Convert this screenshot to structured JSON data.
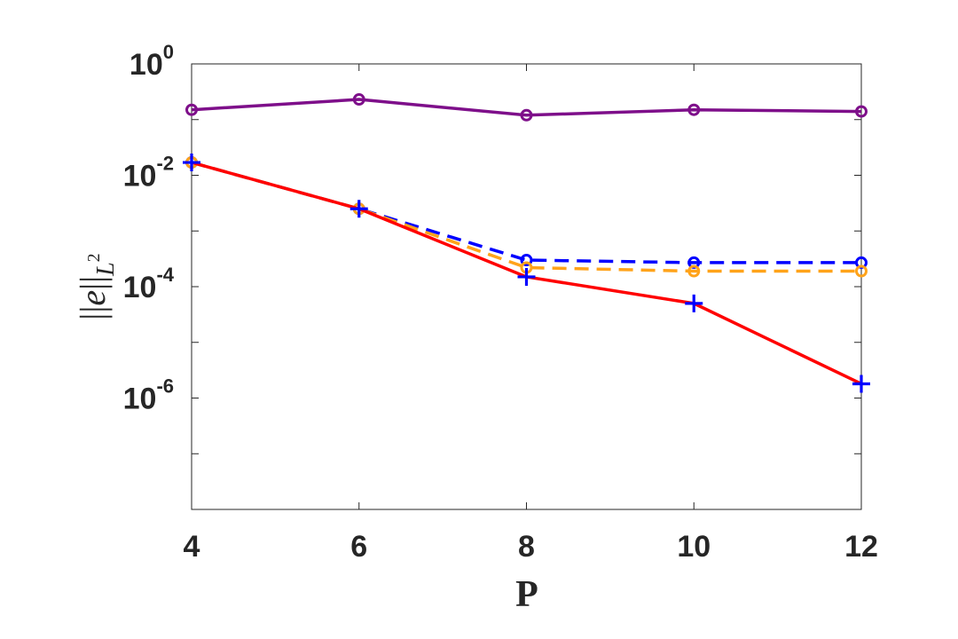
{
  "chart_data": {
    "type": "line",
    "xlabel": "P",
    "ylabel": "||e||_{L^2}",
    "x": [
      4,
      6,
      8,
      10,
      12
    ],
    "xlim": [
      4,
      12
    ],
    "ylim": [
      1e-08,
      1
    ],
    "yscale": "log",
    "xticks": [
      "4",
      "6",
      "8",
      "10",
      "12"
    ],
    "yticks": [
      {
        "base": "10",
        "exp": "0",
        "value": 1
      },
      {
        "base": "10",
        "exp": "-2",
        "value": 0.01
      },
      {
        "base": "10",
        "exp": "-4",
        "value": 0.0001
      },
      {
        "base": "10",
        "exp": "-6",
        "value": 1e-06
      }
    ],
    "grid": false,
    "series": [
      {
        "color": "#7e0f8a",
        "linestyle": "solid",
        "marker": "circle",
        "values": [
          0.15,
          0.23,
          0.12,
          0.15,
          0.14
        ]
      },
      {
        "color": "#0000ff",
        "linestyle": "dashed",
        "marker": "circle",
        "values": [
          0.017,
          0.0025,
          0.0003,
          0.00027,
          0.00027
        ]
      },
      {
        "color": "#ffa31a",
        "linestyle": "dashed",
        "marker": "circle",
        "values": [
          0.017,
          0.0025,
          0.00022,
          0.00019,
          0.00019
        ]
      },
      {
        "color": "#ff0000",
        "linestyle": "solid",
        "marker": "none",
        "values": [
          0.017,
          0.0025,
          0.00015,
          5e-05,
          1.8e-06
        ]
      },
      {
        "color": "#0000ff",
        "linestyle": "none",
        "marker": "plus",
        "values": [
          0.017,
          0.0025,
          0.00015,
          5e-05,
          1.8e-06
        ]
      }
    ]
  }
}
